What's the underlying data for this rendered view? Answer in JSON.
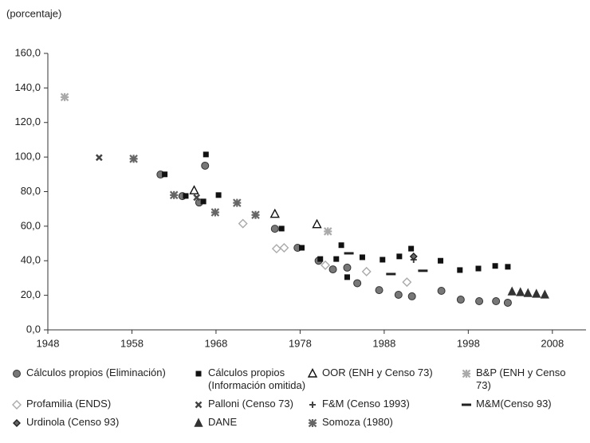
{
  "chart_data": {
    "type": "scatter",
    "ylabel": "(porcentaje)",
    "xlim": [
      1948,
      2012
    ],
    "xticks": [
      1948,
      1958,
      1968,
      1978,
      1988,
      1998,
      2008
    ],
    "ylim": [
      0,
      160
    ],
    "yticks": [
      {
        "value": 0,
        "label": "0,0"
      },
      {
        "value": 20,
        "label": "20,0"
      },
      {
        "value": 40,
        "label": "40,0"
      },
      {
        "value": 60,
        "label": "60,0"
      },
      {
        "value": 80,
        "label": "80,0"
      },
      {
        "value": 100,
        "label": "100,0"
      },
      {
        "value": 120,
        "label": "120,0"
      },
      {
        "value": 140,
        "label": "140,0"
      },
      {
        "value": 160,
        "label": "160,0"
      }
    ],
    "grid": false,
    "series": [
      {
        "name": "Cálculos propios (Eliminación)",
        "marker": "circle",
        "color": "#777777",
        "x": [
          1961.4,
          1964,
          1966,
          1966.7,
          1975,
          1977.7,
          1980.2,
          1981.9,
          1983.6,
          1984.8,
          1987.4,
          1989.7,
          1991.3,
          1994.8,
          1997.1,
          1999.3,
          2001.3,
          2002.7
        ],
        "values": [
          89.9,
          77.4,
          73.7,
          95,
          58.5,
          47.5,
          40,
          35,
          36,
          27,
          23,
          20.3,
          19.4,
          22.6,
          17.5,
          16.6,
          16.6,
          15.7
        ]
      },
      {
        "name": "Cálculos propios (Información omitida)",
        "marker": "square",
        "color": "#111111",
        "x": [
          1961.9,
          1964.4,
          1966.5,
          1968.3,
          1966.8,
          1975.8,
          1978.2,
          1980.4,
          1982.3,
          1982.9,
          1983.6,
          1985.4,
          1987.8,
          1989.8,
          1991.2,
          1994.7,
          1997,
          1999.2,
          2001.2,
          2002.7
        ],
        "values": [
          90,
          77.5,
          74.3,
          78,
          101.5,
          58.6,
          47.5,
          41,
          41,
          49,
          30.5,
          42,
          40.6,
          42.5,
          47,
          40,
          34.6,
          35.5,
          37,
          36.5
        ]
      },
      {
        "name": "OOR (ENH y Censo 73)",
        "marker": "triangle-open",
        "color": "#111111",
        "x": [
          1965.4,
          1975,
          1980
        ],
        "values": [
          80.6,
          67,
          61
        ]
      },
      {
        "name": "B&P (ENH y Censo 73)",
        "marker": "asterisk",
        "color": "#aaaaaa",
        "x": [
          1950,
          1981.3
        ],
        "values": [
          134.7,
          57
        ]
      },
      {
        "name": "Profamilia (ENDS)",
        "marker": "diamond-open",
        "color": "#aaaaaa",
        "x": [
          1971.2,
          1975.2,
          1976.1,
          1981,
          1985.9,
          1990.7
        ],
        "values": [
          61.5,
          47,
          47.5,
          37.4,
          33.7,
          27.6
        ]
      },
      {
        "name": "Palloni (Censo 73)",
        "marker": "cross",
        "color": "#444444",
        "x": [
          1954.1,
          1965.7
        ],
        "values": [
          99.7,
          76.6
        ]
      },
      {
        "name": "F&M (Censo 1993)",
        "marker": "plus",
        "color": "#444444",
        "x": [
          1991.5
        ],
        "values": [
          40.6
        ]
      },
      {
        "name": "M&M(Censo 93)",
        "marker": "dash",
        "color": "#222222",
        "x": [
          1983.8,
          1988.8,
          1992.6
        ],
        "values": [
          44.3,
          32.3,
          34.2
        ]
      },
      {
        "name": "Urdinola (Censo 93)",
        "marker": "diamond",
        "color": "#666666",
        "x": [
          1991.5
        ],
        "values": [
          42.5
        ]
      },
      {
        "name": "DANE",
        "marker": "triangle",
        "color": "#333333",
        "x": [
          2003.2,
          2004.2,
          2005.1,
          2006.1,
          2007.1
        ],
        "values": [
          22.1,
          21.7,
          21.2,
          20.8,
          20.3
        ]
      },
      {
        "name": "Somoza (1980)",
        "marker": "asterisk",
        "color": "#666666",
        "x": [
          1958.2,
          1963,
          1967.9,
          1970.5,
          1972.7
        ],
        "values": [
          99,
          78,
          68,
          73.5,
          66.5
        ]
      }
    ]
  }
}
